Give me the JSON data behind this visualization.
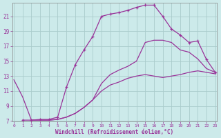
{
  "xlabel": "Windchill (Refroidissement éolien,°C)",
  "bg_color": "#cceaea",
  "grid_color": "#aacccc",
  "line_color": "#993399",
  "xmin": 0,
  "xmax": 23,
  "ymin": 7,
  "ymax": 22,
  "yticks": [
    7,
    9,
    11,
    13,
    15,
    17,
    19,
    21
  ],
  "xticks": [
    0,
    1,
    2,
    3,
    4,
    5,
    6,
    7,
    8,
    9,
    10,
    11,
    12,
    13,
    14,
    15,
    16,
    17,
    18,
    19,
    20,
    21,
    22,
    23
  ],
  "line_upper_x": [
    1,
    2,
    3,
    4,
    5,
    6,
    7,
    8,
    9,
    10,
    11,
    12,
    13,
    14,
    15,
    16,
    17,
    18,
    19,
    20,
    21,
    22,
    23
  ],
  "line_upper_y": [
    7.1,
    7.1,
    7.2,
    7.2,
    7.5,
    11.5,
    14.5,
    16.5,
    18.3,
    21.0,
    21.3,
    21.5,
    21.8,
    22.2,
    22.5,
    22.5,
    21.0,
    19.3,
    18.5,
    17.5,
    17.7,
    15.2,
    13.5
  ],
  "line_mid_x": [
    2,
    3,
    4,
    5,
    6,
    7,
    8,
    9,
    10,
    11,
    12,
    13,
    14,
    15,
    16,
    17,
    18,
    19,
    20,
    21,
    22,
    23
  ],
  "line_mid_y": [
    7.1,
    7.1,
    7.1,
    7.2,
    7.5,
    8.0,
    8.8,
    9.8,
    12.0,
    13.2,
    13.8,
    14.3,
    15.0,
    17.5,
    17.8,
    17.8,
    17.5,
    16.5,
    16.2,
    15.3,
    14.0,
    13.5
  ],
  "line_low_x": [
    0,
    1,
    2,
    3,
    4,
    5,
    6,
    7,
    8,
    9,
    10,
    11,
    12,
    13,
    14,
    15,
    16,
    17,
    18,
    19,
    20,
    21,
    22,
    23
  ],
  "line_low_y": [
    12.5,
    10.2,
    7.1,
    7.1,
    7.1,
    7.2,
    7.5,
    8.0,
    8.8,
    9.8,
    11.0,
    11.8,
    12.2,
    12.7,
    13.0,
    13.2,
    13.0,
    12.8,
    13.0,
    13.2,
    13.5,
    13.7,
    13.5,
    13.3
  ]
}
